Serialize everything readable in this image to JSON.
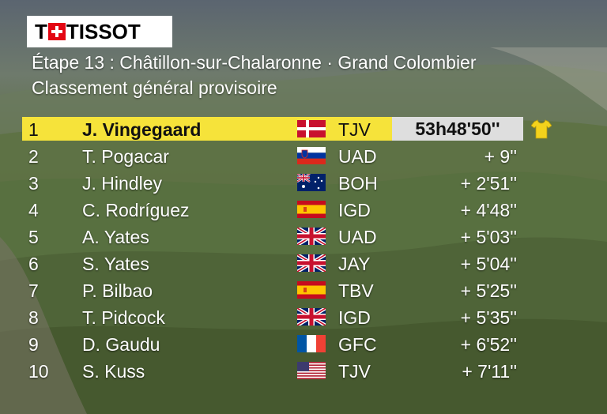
{
  "sponsor": {
    "logo_text": "TISSOT",
    "logo_cross_letter": "T"
  },
  "stage": {
    "title": "Étape 13 : Châtillon-sur-Chalaronne · Grand Colombier"
  },
  "classification": {
    "title": "Classement général provisoire"
  },
  "leader": {
    "time": "53h48'50''",
    "jersey_color": "#f6e33a"
  },
  "standings": [
    {
      "rank": "1",
      "name": "J. Vingegaard",
      "team": "TJV",
      "time": "",
      "flag": "denmark"
    },
    {
      "rank": "2",
      "name": "T. Pogacar",
      "team": "UAD",
      "time": "+ 9''",
      "flag": "slovenia"
    },
    {
      "rank": "3",
      "name": "J. Hindley",
      "team": "BOH",
      "time": "+ 2'51''",
      "flag": "australia"
    },
    {
      "rank": "4",
      "name": "C. Rodríguez",
      "team": "IGD",
      "time": "+ 4'48''",
      "flag": "spain"
    },
    {
      "rank": "5",
      "name": "A. Yates",
      "team": "UAD",
      "time": "+ 5'03''",
      "flag": "united-kingdom"
    },
    {
      "rank": "6",
      "name": "S. Yates",
      "team": "JAY",
      "time": "+ 5'04''",
      "flag": "united-kingdom"
    },
    {
      "rank": "7",
      "name": "P. Bilbao",
      "team": "TBV",
      "time": "+ 5'25''",
      "flag": "spain"
    },
    {
      "rank": "8",
      "name": "T. Pidcock",
      "team": "IGD",
      "time": "+ 5'35''",
      "flag": "united-kingdom"
    },
    {
      "rank": "9",
      "name": "D. Gaudu",
      "team": "GFC",
      "time": "+ 6'52''",
      "flag": "france"
    },
    {
      "rank": "10",
      "name": "S. Kuss",
      "team": "TJV",
      "time": "+ 7'11''",
      "flag": "united-states"
    }
  ],
  "colors": {
    "leader_band": "#f6e33a",
    "leader_time_box": "#dedede",
    "tissot_red": "#e30613"
  }
}
